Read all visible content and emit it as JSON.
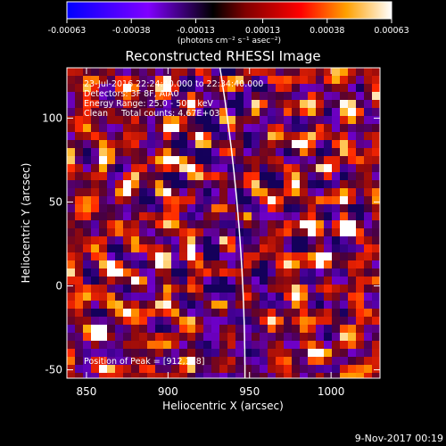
{
  "chart_data": {
    "type": "heatmap",
    "title": "Reconstructed RHESSI Image",
    "xlabel": "Heliocentric X (arcsec)",
    "ylabel": "Heliocentric Y (arcsec)",
    "xlim": [
      838,
      1030
    ],
    "ylim": [
      -55,
      130
    ],
    "x_ticks": [
      850,
      900,
      950,
      1000
    ],
    "y_ticks": [
      -50,
      0,
      50,
      100
    ],
    "colorbar": {
      "ticks": [
        "-0.00063",
        "-0.00038",
        "-0.00013",
        "0.00013",
        "0.00038",
        "0.00063"
      ],
      "tick_values": [
        -0.00063,
        -0.00038,
        -0.00013,
        0.00013,
        0.00038,
        0.00063
      ],
      "unit_label": "(photons cm⁻² s⁻¹ asec⁻²)",
      "colormap": [
        "#0000ff",
        "#7f00ff",
        "#000000",
        "#7f0000",
        "#ff0000",
        "#ffa500",
        "#ffffff"
      ]
    },
    "annotations": [
      "23-Jul-2016 22:24:40.000 to 22:34:40.000",
      "Detectors: 3F 8F, AIA0",
      "Energy Range: 25.0 - 50.0 keV",
      "Clean     Total counts: 4.67E+03"
    ],
    "peak_label": "Position of Peak = [912,118]",
    "peak": [
      912,
      118
    ],
    "limb_line_x": 945
  },
  "footer": {
    "date": "9-Nov-2017 00:19"
  }
}
